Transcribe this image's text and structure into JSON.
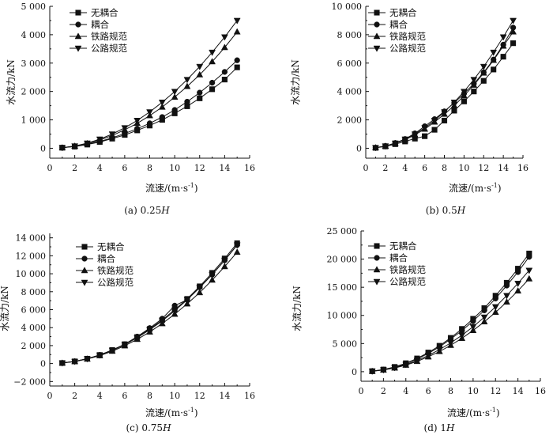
{
  "chart_data": [
    {
      "type": "line",
      "caption": "(a) 0.25H",
      "caption_prefix": "(a) 0.25",
      "caption_italic": "H",
      "xlabel": "流速/(m·s-1)",
      "xlabel_main": "流速/(m·s",
      "xlabel_sup": "-1",
      "xlabel_close": ")",
      "ylabel": "水流力/kN",
      "xlim": [
        0,
        16
      ],
      "ylim": [
        -350,
        5000
      ],
      "xticks": [
        0,
        2,
        4,
        6,
        8,
        10,
        12,
        14,
        16
      ],
      "xtick_labels": [
        "0",
        "2",
        "4",
        "6",
        "8",
        "10",
        "12",
        "14",
        "16"
      ],
      "yticks": [
        0,
        1000,
        2000,
        3000,
        4000,
        5000
      ],
      "ytick_labels": [
        "0",
        "1 000",
        "2 000",
        "3 000",
        "4 000",
        "5 000"
      ],
      "x": [
        1,
        2,
        3,
        4,
        5,
        6,
        7,
        8,
        9,
        10,
        11,
        12,
        13,
        14,
        15
      ],
      "series": [
        {
          "name": "无耦合",
          "marker": "square",
          "values": [
            20,
            60,
            130,
            220,
            340,
            470,
            630,
            800,
            1000,
            1230,
            1480,
            1760,
            2080,
            2420,
            2850
          ]
        },
        {
          "name": "耦合",
          "marker": "circle",
          "values": [
            22,
            65,
            140,
            240,
            370,
            520,
            690,
            880,
            1100,
            1350,
            1640,
            1960,
            2310,
            2690,
            3100
          ]
        },
        {
          "name": "铁路规范",
          "marker": "triangle-up",
          "values": [
            18,
            75,
            165,
            290,
            450,
            650,
            880,
            1150,
            1450,
            1800,
            2180,
            2590,
            3050,
            3550,
            4100
          ]
        },
        {
          "name": "公路规范",
          "marker": "triangle-down",
          "values": [
            20,
            80,
            180,
            320,
            500,
            720,
            980,
            1280,
            1620,
            2000,
            2420,
            2880,
            3380,
            3920,
            4500
          ]
        }
      ]
    },
    {
      "type": "line",
      "caption": "(b) 0.5H",
      "caption_prefix": "(b) 0.5",
      "caption_italic": "H",
      "xlabel": "流速/(m·s-1)",
      "xlabel_main": "流速/(m·s",
      "xlabel_sup": "-1",
      "xlabel_close": ")",
      "ylabel": "水流力/kN",
      "xlim": [
        0,
        16
      ],
      "ylim": [
        -700,
        10000
      ],
      "xticks": [
        0,
        2,
        4,
        6,
        8,
        10,
        12,
        14,
        16
      ],
      "xtick_labels": [
        "0",
        "2",
        "4",
        "6",
        "8",
        "10",
        "12",
        "14",
        "16"
      ],
      "yticks": [
        0,
        2000,
        4000,
        6000,
        8000,
        10000
      ],
      "ytick_labels": [
        "0",
        "2 000",
        "4 000",
        "6 000",
        "8 000",
        "10 000"
      ],
      "x": [
        1,
        2,
        3,
        4,
        5,
        6,
        7,
        8,
        9,
        10,
        11,
        12,
        13,
        14,
        15
      ],
      "series": [
        {
          "name": "无耦合",
          "marker": "square",
          "values": [
            30,
            130,
            290,
            480,
            680,
            850,
            1300,
            1950,
            2650,
            3300,
            4000,
            4750,
            5550,
            6450,
            7400
          ]
        },
        {
          "name": "耦合",
          "marker": "circle",
          "values": [
            40,
            160,
            370,
            650,
            1050,
            1550,
            2050,
            2600,
            3200,
            3850,
            4550,
            5350,
            6250,
            7300,
            8500
          ]
        },
        {
          "name": "铁路规范",
          "marker": "triangle-up",
          "values": [
            40,
            150,
            340,
            600,
            950,
            1350,
            1850,
            2400,
            3000,
            3700,
            4450,
            5300,
            6200,
            7200,
            8200
          ]
        },
        {
          "name": "公路规范",
          "marker": "triangle-down",
          "values": [
            40,
            160,
            360,
            640,
            1000,
            1440,
            1960,
            2560,
            3240,
            4000,
            4840,
            5760,
            6760,
            7840,
            9000
          ]
        }
      ]
    },
    {
      "type": "line",
      "caption": "(c) 0.75H",
      "caption_prefix": "(c) 0.75",
      "caption_italic": "H",
      "xlabel": "流速/(m·s-1)",
      "xlabel_main": "流速/(m·s",
      "xlabel_sup": "-1",
      "xlabel_close": ")",
      "ylabel": "水流力/kN",
      "xlim": [
        0,
        16
      ],
      "ylim": [
        -2500,
        14500
      ],
      "xticks": [
        0,
        2,
        4,
        6,
        8,
        10,
        12,
        14,
        16
      ],
      "xtick_labels": [
        "0",
        "2",
        "4",
        "6",
        "8",
        "10",
        "12",
        "14",
        "16"
      ],
      "yticks": [
        -2000,
        0,
        2000,
        4000,
        6000,
        8000,
        10000,
        12000,
        14000
      ],
      "ytick_labels": [
        "−2 000",
        "0",
        "2 000",
        "4 000",
        "6 000",
        "8 000",
        "10 000",
        "12 000",
        "14 000"
      ],
      "x": [
        1,
        2,
        3,
        4,
        5,
        6,
        7,
        8,
        9,
        10,
        11,
        12,
        13,
        14,
        15
      ],
      "series": [
        {
          "name": "无耦合",
          "marker": "square",
          "values": [
            60,
            240,
            540,
            950,
            1500,
            2150,
            2950,
            3850,
            4850,
            6000,
            7200,
            8600,
            10100,
            11700,
            13400
          ]
        },
        {
          "name": "耦合",
          "marker": "circle",
          "values": [
            60,
            240,
            540,
            960,
            1500,
            2150,
            3000,
            3950,
            5000,
            6450,
            7100,
            8500,
            9900,
            11500,
            13200
          ]
        },
        {
          "name": "铁路规范",
          "marker": "triangle-up",
          "values": [
            55,
            220,
            500,
            880,
            1380,
            1980,
            2700,
            3520,
            4450,
            5500,
            6650,
            7900,
            9300,
            10800,
            12400
          ]
        },
        {
          "name": "公路规范",
          "marker": "triangle-down",
          "values": [
            60,
            235,
            530,
            940,
            1470,
            2110,
            2880,
            3760,
            4750,
            5870,
            7100,
            8450,
            9920,
            11500,
            13200
          ]
        }
      ]
    },
    {
      "type": "line",
      "caption": "(d) 1H",
      "caption_prefix": "(d) 1",
      "caption_italic": "H",
      "xlabel": "流速/(m·s-1)",
      "xlabel_main": "流速/(m·s",
      "xlabel_sup": "-1",
      "xlabel_close": ")",
      "ylabel": "水流力/kN",
      "xlim": [
        0,
        16
      ],
      "ylim": [
        -1700,
        25000
      ],
      "xticks": [
        0,
        2,
        4,
        6,
        8,
        10,
        12,
        14,
        16
      ],
      "xtick_labels": [
        "0",
        "2",
        "4",
        "6",
        "8",
        "10",
        "12",
        "14",
        "16"
      ],
      "yticks": [
        0,
        5000,
        10000,
        15000,
        20000,
        25000
      ],
      "ytick_labels": [
        "0",
        "5 000",
        "10 000",
        "15 000",
        "20 000",
        "25 000"
      ],
      "x": [
        1,
        2,
        3,
        4,
        5,
        6,
        7,
        8,
        9,
        10,
        11,
        12,
        13,
        14,
        15
      ],
      "series": [
        {
          "name": "无耦合",
          "marker": "square",
          "values": [
            95,
            380,
            850,
            1500,
            2350,
            3400,
            4600,
            6000,
            7600,
            9400,
            11300,
            13500,
            15800,
            18300,
            21000
          ]
        },
        {
          "name": "耦合",
          "marker": "circle",
          "values": [
            90,
            360,
            810,
            1440,
            2250,
            3250,
            4400,
            5800,
            7300,
            9000,
            10900,
            13000,
            15300,
            17700,
            20400
          ]
        },
        {
          "name": "铁路规范",
          "marker": "triangle-up",
          "values": [
            75,
            290,
            660,
            1170,
            1830,
            2640,
            3590,
            4690,
            5930,
            7330,
            8870,
            10550,
            12380,
            14360,
            16500
          ]
        },
        {
          "name": "公路规范",
          "marker": "triangle-down",
          "values": [
            80,
            320,
            720,
            1280,
            2000,
            2880,
            3920,
            5120,
            6480,
            8000,
            9680,
            11520,
            13520,
            15680,
            18000
          ]
        }
      ]
    }
  ]
}
